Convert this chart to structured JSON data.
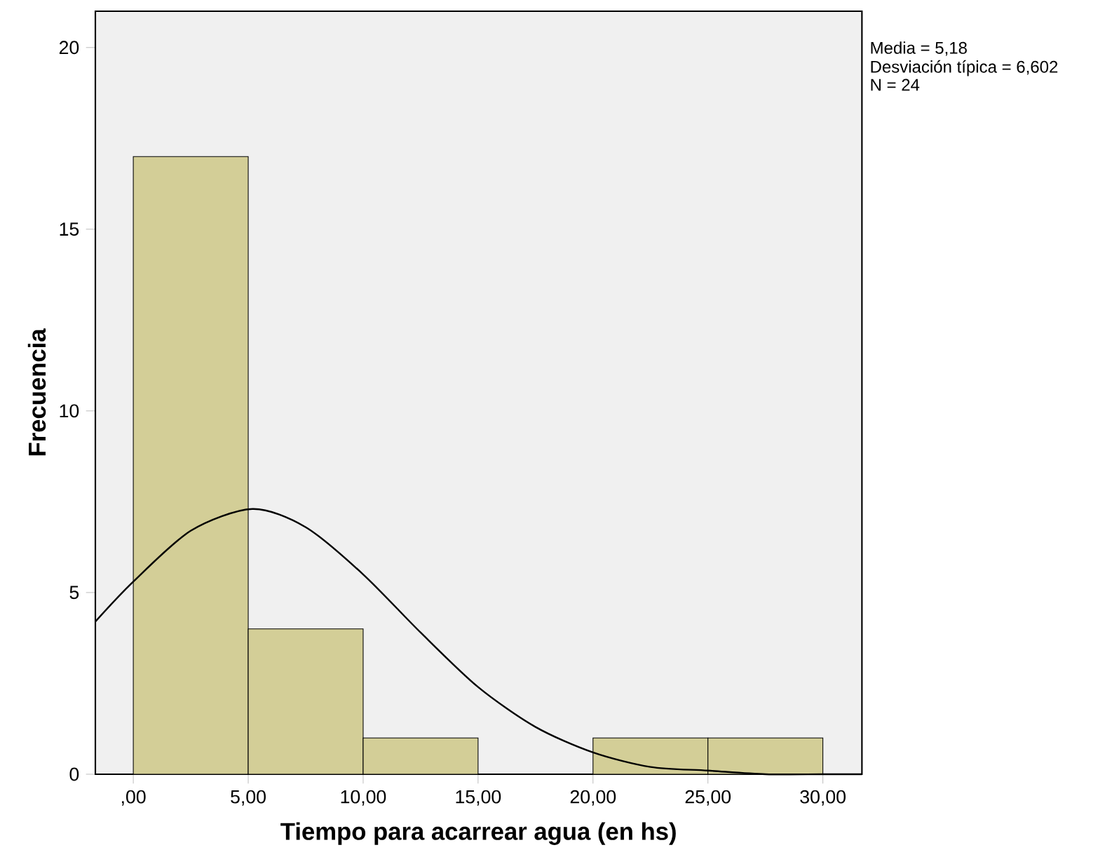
{
  "chart_data": {
    "type": "histogram",
    "xlabel": "Tiempo para acarrear agua (en hs)",
    "ylabel": "Frecuencia",
    "bins": [
      0,
      5,
      10,
      15,
      20,
      25,
      30
    ],
    "values": [
      17,
      4,
      1,
      0,
      1,
      1
    ],
    "color": "#d3ce97",
    "series": [
      {
        "type": "line",
        "color": "#000000",
        "x": [
          -1.65,
          0,
          2.5,
          5.18,
          7.5,
          10,
          12.5,
          15,
          17.5,
          20,
          22.5,
          25,
          27.5,
          30,
          31.7
        ],
        "values": [
          4.2,
          5.3,
          6.7,
          7.3,
          6.8,
          5.5,
          3.9,
          2.4,
          1.3,
          0.6,
          0.2,
          0.1,
          0.0,
          0.0,
          0.0
        ]
      }
    ],
    "xlim": [
      -1.65,
      31.7
    ],
    "ylim": [
      0,
      21
    ],
    "xticks": [
      {
        "value": 0,
        "label": ",00"
      },
      {
        "value": 5,
        "label": "5,00"
      },
      {
        "value": 10,
        "label": "10,00"
      },
      {
        "value": 15,
        "label": "15,00"
      },
      {
        "value": 20,
        "label": "20,00"
      },
      {
        "value": 25,
        "label": "25,00"
      },
      {
        "value": 30,
        "label": "30,00"
      }
    ],
    "yticks": [
      0,
      5,
      10,
      15,
      20
    ],
    "annotations": [
      "Media = 5,18",
      "Desviación típica = 6,602",
      "N = 24"
    ]
  }
}
